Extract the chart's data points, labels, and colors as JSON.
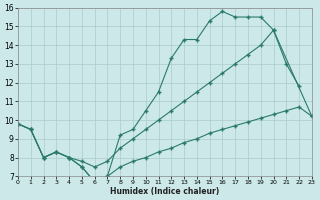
{
  "xlabel": "Humidex (Indice chaleur)",
  "bg_color": "#cce8e8",
  "line_color": "#2a7a6a",
  "grid_color": "#aacccc",
  "xlim": [
    0,
    23
  ],
  "ylim": [
    7,
    16
  ],
  "xticks": [
    0,
    1,
    2,
    3,
    4,
    5,
    6,
    7,
    8,
    9,
    10,
    11,
    12,
    13,
    14,
    15,
    16,
    17,
    18,
    19,
    20,
    21,
    22,
    23
  ],
  "yticks": [
    7,
    8,
    9,
    10,
    11,
    12,
    13,
    14,
    15,
    16
  ],
  "curve1_x": [
    0,
    1,
    2,
    3,
    4,
    5,
    6,
    7,
    8,
    9,
    10,
    11,
    12,
    13,
    14,
    15,
    16,
    17,
    18,
    19,
    20,
    21,
    22
  ],
  "curve1_y": [
    9.8,
    9.5,
    8.0,
    8.3,
    8.0,
    7.5,
    6.7,
    7.0,
    9.2,
    9.5,
    10.5,
    11.5,
    13.3,
    14.3,
    14.3,
    15.3,
    15.8,
    15.5,
    15.5,
    15.5,
    14.8,
    13.0,
    11.8
  ],
  "curve2_x": [
    0,
    1,
    2,
    3,
    4,
    5,
    6,
    7,
    8,
    9,
    10,
    11,
    12,
    13,
    14,
    15,
    16,
    17,
    18,
    19,
    20,
    23
  ],
  "curve2_y": [
    9.8,
    9.5,
    8.0,
    8.3,
    8.0,
    7.8,
    7.5,
    7.8,
    8.5,
    9.0,
    9.5,
    10.0,
    10.5,
    11.0,
    11.5,
    12.0,
    12.5,
    13.0,
    13.5,
    14.0,
    14.8,
    10.2
  ],
  "curve3_x": [
    0,
    1,
    2,
    3,
    4,
    5,
    6,
    7,
    8,
    9,
    10,
    11,
    12,
    13,
    14,
    15,
    16,
    17,
    18,
    19,
    20,
    21,
    22,
    23
  ],
  "curve3_y": [
    9.8,
    9.5,
    8.0,
    8.3,
    8.0,
    7.5,
    6.7,
    7.0,
    7.5,
    7.8,
    8.0,
    8.3,
    8.5,
    8.8,
    9.0,
    9.3,
    9.5,
    9.7,
    9.9,
    10.1,
    10.3,
    10.5,
    10.7,
    10.2
  ]
}
